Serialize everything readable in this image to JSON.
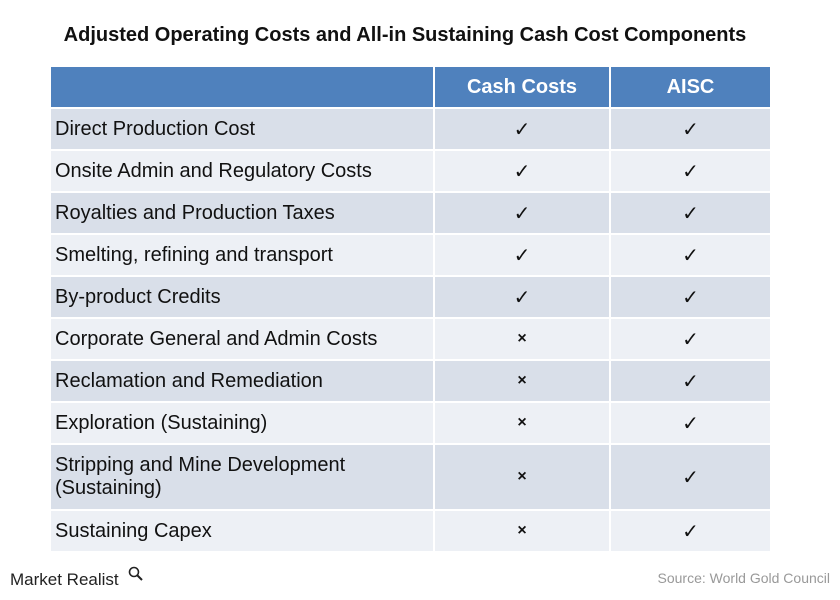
{
  "header": {
    "title": "Adjusted Operating Costs and All-in Sustaining Cash Cost Components"
  },
  "table": {
    "columns": [
      "Cash Costs",
      "AISC"
    ],
    "rows": [
      [
        "Direct Production Cost",
        "✓",
        "✓"
      ],
      [
        "Onsite Admin and Regulatory Costs",
        "✓",
        "✓"
      ],
      [
        "Royalties and Production Taxes",
        "✓",
        "✓"
      ],
      [
        "Smelting, refining and transport",
        "✓",
        "✓"
      ],
      [
        "By-product Credits",
        "✓",
        "✓"
      ],
      [
        "Corporate General and Admin Costs",
        "×",
        "✓"
      ],
      [
        "Reclamation and Remediation",
        "×",
        "✓"
      ],
      [
        "Exploration (Sustaining)",
        "×",
        "✓"
      ],
      [
        "Stripping and Mine Development (Sustaining)",
        "×",
        "✓"
      ],
      [
        "Sustaining Capex",
        "×",
        "✓"
      ]
    ]
  },
  "footer": {
    "brand": "Market Realist",
    "source": "Source: World Gold Council"
  }
}
